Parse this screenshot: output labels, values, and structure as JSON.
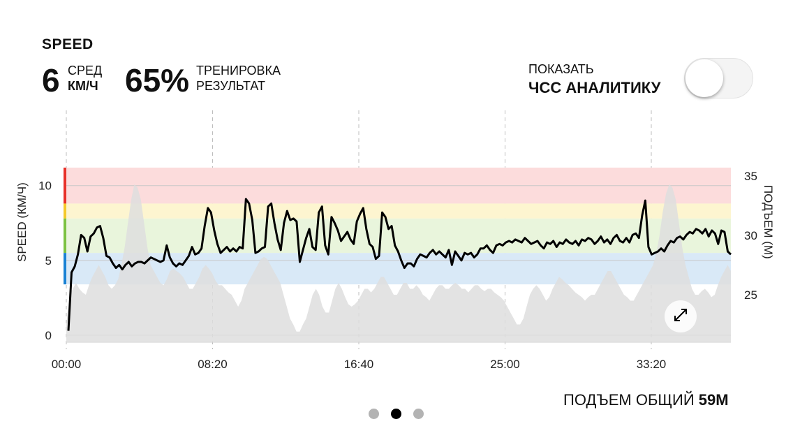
{
  "header": {
    "title": "SPEED",
    "avg_value": "6",
    "avg_label_top": "СРЕД",
    "avg_label_bottom": "КМ/Ч",
    "result_value": "65%",
    "result_label_top": "ТРЕНИРОВКА",
    "result_label_bottom": "РЕЗУЛЬТАТ"
  },
  "toggle": {
    "label_top": "ПОКАЗАТЬ",
    "label_bottom": "ЧСС АНАЛИТИКУ",
    "state": "off"
  },
  "chart_data": {
    "type": "line",
    "xlabel": "",
    "ylabel": "SPEED (КМ/Ч)",
    "y2label": "ПОДЪЕМ (М)",
    "x_ticks": [
      "00:00",
      "08:20",
      "16:40",
      "25:00",
      "33:20"
    ],
    "y_ticks": [
      "0",
      "5",
      "10"
    ],
    "y2_ticks": [
      "25",
      "30",
      "35"
    ],
    "ylim": [
      0,
      11.2
    ],
    "y2lim": [
      21.5,
      35.7
    ],
    "zones": [
      {
        "from": 8.8,
        "to": 11.2,
        "color": "#fcdcdc",
        "edge": "#e8312a"
      },
      {
        "from": 7.8,
        "to": 8.8,
        "color": "#fdf5d0",
        "edge": "#f4c92b"
      },
      {
        "from": 5.5,
        "to": 7.8,
        "color": "#e9f5dc",
        "edge": "#7cc242"
      },
      {
        "from": 3.4,
        "to": 5.5,
        "color": "#d9e9f7",
        "edge": "#1a82d4"
      }
    ],
    "series": [
      {
        "type": "line",
        "color": "#000000",
        "values": [
          0.3,
          4.2,
          4.6,
          5.4,
          6.7,
          6.5,
          5.6,
          6.6,
          6.8,
          7.2,
          7.3,
          6.5,
          5.3,
          5.2,
          4.8,
          4.5,
          4.7,
          4.4,
          4.7,
          4.9,
          4.6,
          4.8,
          4.9,
          4.9,
          4.8,
          5.0,
          5.2,
          5.1,
          5.0,
          4.9,
          5.0,
          6.0,
          5.2,
          4.8,
          4.6,
          4.8,
          4.7,
          5.0,
          5.3,
          5.9,
          5.4,
          5.5,
          5.8,
          7.3,
          8.5,
          8.2,
          7.0,
          6.1,
          5.5,
          5.7,
          5.9,
          5.6,
          5.8,
          5.6,
          5.9,
          5.8,
          9.1,
          8.8,
          7.7,
          5.5,
          5.6,
          5.8,
          5.9,
          8.6,
          8.8,
          7.5,
          6.4,
          5.7,
          7.5,
          8.3,
          7.7,
          7.8,
          7.6,
          4.9,
          5.7,
          6.5,
          7.1,
          5.9,
          5.7,
          8.2,
          8.6,
          6.0,
          5.4,
          7.9,
          7.5,
          7.0,
          6.3,
          6.6,
          6.9,
          6.4,
          6.1,
          7.6,
          8.1,
          8.5,
          7.1,
          6.1,
          5.9,
          5.1,
          5.3,
          8.2,
          7.9,
          7.1,
          7.3,
          6.0,
          5.6,
          5.0,
          4.5,
          4.8,
          4.8,
          4.6,
          5.1,
          5.4,
          5.3,
          5.2,
          5.5,
          5.7,
          5.4,
          5.6,
          5.4,
          5.2,
          5.7,
          4.7,
          5.6,
          5.3,
          5.0,
          5.5,
          5.4,
          5.5,
          5.2,
          5.4,
          5.8,
          5.8,
          6.0,
          5.7,
          5.5,
          6.0,
          6.1,
          6.0,
          6.2,
          6.3,
          6.2,
          6.4,
          6.3,
          6.2,
          6.5,
          6.3,
          6.1,
          6.2,
          6.3,
          6.0,
          5.8,
          6.2,
          6.1,
          6.3,
          5.9,
          6.2,
          6.1,
          6.4,
          6.2,
          6.1,
          6.3,
          6.0,
          6.4,
          6.3,
          6.5,
          6.4,
          6.1,
          6.3,
          6.6,
          6.2,
          6.4,
          6.1,
          6.5,
          6.7,
          6.3,
          6.2,
          6.5,
          6.2,
          6.7,
          6.8,
          6.5,
          8.0,
          9.0,
          5.9,
          5.4,
          5.5,
          5.6,
          5.8,
          5.6,
          6.0,
          6.3,
          6.2,
          6.5,
          6.6,
          6.4,
          6.7,
          6.9,
          6.8,
          7.1,
          7.0,
          6.8,
          7.1,
          6.6,
          7.0,
          6.8,
          6.1,
          7.0,
          6.9,
          5.6,
          5.4
        ]
      },
      {
        "type": "area",
        "color": "#dedede",
        "values": [
          22.5,
          25.0,
          25.5,
          26.0,
          25.5,
          25.2,
          25.0,
          25.8,
          26.5,
          27.0,
          27.5,
          27.0,
          26.5,
          25.8,
          25.5,
          25.8,
          26.3,
          27.5,
          29.0,
          31.0,
          33.0,
          34.3,
          34.0,
          33.0,
          31.0,
          29.0,
          27.5,
          27.0,
          26.5,
          26.0,
          25.8,
          26.3,
          27.0,
          27.2,
          27.0,
          26.8,
          26.5,
          26.0,
          25.5,
          25.5,
          26.0,
          26.5,
          27.2,
          27.5,
          27.2,
          26.8,
          26.2,
          25.8,
          25.8,
          25.5,
          25.2,
          25.0,
          24.5,
          24.0,
          24.5,
          25.5,
          26.0,
          26.5,
          27.0,
          27.5,
          28.0,
          28.2,
          28.0,
          27.5,
          27.0,
          26.5,
          26.0,
          25.0,
          24.0,
          23.0,
          22.5,
          21.9,
          21.9,
          22.5,
          23.0,
          24.0,
          25.0,
          25.5,
          25.0,
          24.0,
          23.5,
          23.5,
          24.5,
          25.5,
          26.0,
          25.5,
          24.8,
          24.2,
          24.0,
          24.2,
          24.5,
          25.0,
          25.5,
          25.5,
          25.2,
          25.5,
          26.0,
          26.5,
          26.5,
          26.0,
          25.5,
          25.0,
          25.0,
          25.5,
          26.0,
          26.0,
          25.5,
          25.5,
          25.8,
          25.5,
          25.0,
          24.8,
          24.5,
          25.0,
          25.5,
          25.8,
          25.8,
          25.5,
          25.5,
          25.8,
          26.0,
          25.8,
          25.5,
          25.5,
          25.2,
          25.5,
          25.8,
          25.8,
          25.5,
          25.3,
          25.5,
          25.5,
          25.2,
          25.0,
          24.8,
          24.5,
          24.0,
          23.5,
          23.0,
          22.5,
          22.5,
          23.0,
          24.0,
          25.0,
          25.5,
          25.8,
          25.5,
          25.0,
          24.5,
          24.8,
          25.5,
          26.0,
          26.5,
          26.3,
          26.0,
          25.8,
          25.5,
          25.2,
          25.0,
          24.8,
          24.5,
          24.8,
          25.0,
          25.0,
          25.5,
          26.0,
          26.5,
          27.0,
          27.0,
          26.5,
          26.0,
          25.5,
          25.0,
          24.8,
          24.5,
          24.5,
          25.0,
          25.5,
          26.0,
          26.5,
          27.0,
          27.5,
          28.5,
          30.0,
          32.0,
          33.5,
          34.3,
          34.0,
          33.0,
          31.0,
          29.0,
          27.5,
          26.5,
          25.5,
          25.0,
          25.0,
          25.3,
          25.5,
          25.2,
          24.8,
          25.0,
          25.8,
          26.5,
          27.0,
          27.5,
          27.0
        ]
      }
    ]
  },
  "expand_icon": "expand-diagonal-icon",
  "footer": {
    "total_label": "ПОДЪЕМ ОБЩИЙ",
    "total_value": "59М"
  },
  "pager": {
    "count": 3,
    "active": 1
  }
}
